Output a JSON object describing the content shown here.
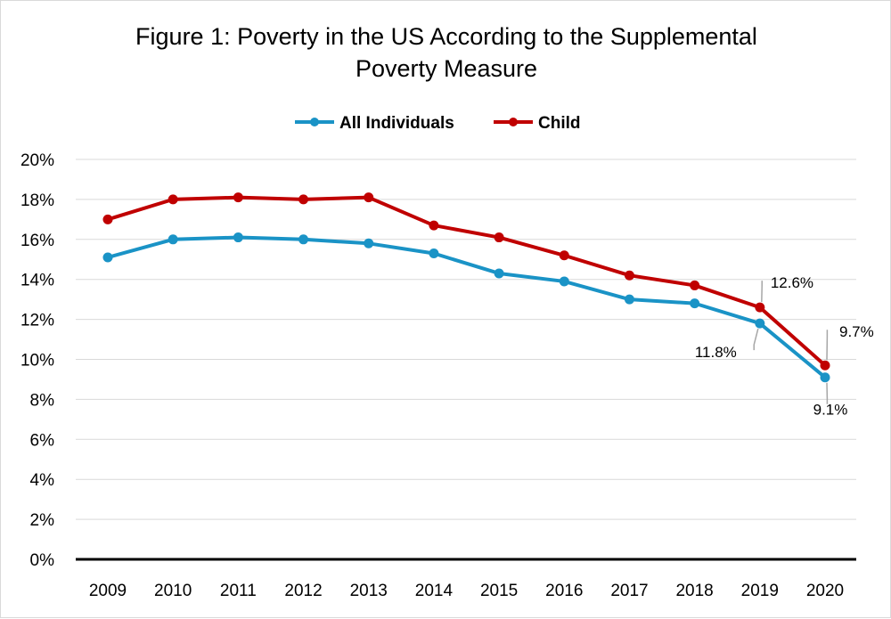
{
  "chart_data": {
    "type": "line",
    "title": "Figure 1: Poverty in the US According to the Supplemental Poverty Measure",
    "title_lines": [
      "Figure 1: Poverty in the US According to the Supplemental",
      "Poverty Measure"
    ],
    "xlabel": "",
    "ylabel": "",
    "ylim": [
      0,
      20
    ],
    "yticks": [
      "0%",
      "2%",
      "4%",
      "6%",
      "8%",
      "10%",
      "12%",
      "14%",
      "16%",
      "18%",
      "20%"
    ],
    "grid": true,
    "legend": "top-center",
    "categories": [
      "2009",
      "2010",
      "2011",
      "2012",
      "2013",
      "2014",
      "2015",
      "2016",
      "2017",
      "2018",
      "2019",
      "2020"
    ],
    "series": [
      {
        "name": "All Individuals",
        "color": "#1a93c6",
        "values": [
          15.1,
          16.0,
          16.1,
          16.0,
          15.8,
          15.3,
          14.3,
          13.9,
          13.0,
          12.8,
          11.8,
          9.1
        ]
      },
      {
        "name": "Child",
        "color": "#c00000",
        "values": [
          17.0,
          18.0,
          18.1,
          18.0,
          18.1,
          16.7,
          16.1,
          15.2,
          14.2,
          13.7,
          12.6,
          9.7
        ]
      }
    ],
    "annotations": [
      {
        "series": 0,
        "index": 10,
        "text": "11.8%"
      },
      {
        "series": 0,
        "index": 11,
        "text": "9.1%"
      },
      {
        "series": 1,
        "index": 10,
        "text": "12.6%"
      },
      {
        "series": 1,
        "index": 11,
        "text": "9.7%"
      }
    ]
  }
}
